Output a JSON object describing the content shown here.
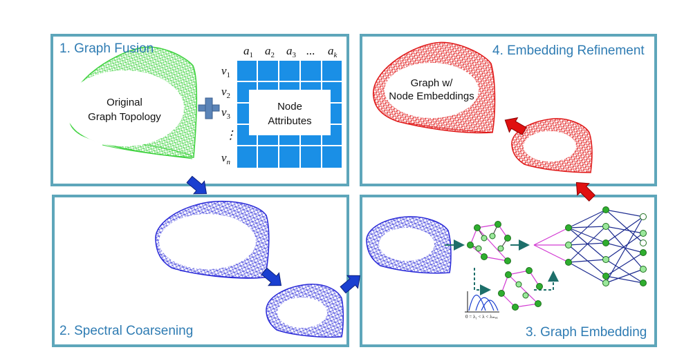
{
  "panels": {
    "fusion": {
      "title": "1. Graph Fusion"
    },
    "refine": {
      "title": "4. Embedding Refinement"
    },
    "coarsen": {
      "title": "2. Spectral Coarsening"
    },
    "embed": {
      "title": "3. Graph Embedding"
    }
  },
  "fusion": {
    "topology_line1": "Original",
    "topology_line2": "Graph Topology",
    "attr_line1": "Node",
    "attr_line2": "Attributes",
    "col_headers": [
      "a",
      "a",
      "a",
      "...",
      "a"
    ],
    "col_subs": [
      "1",
      "2",
      "3",
      "",
      "k"
    ],
    "row_headers": [
      "v",
      "v",
      "v",
      "⋮",
      "v"
    ],
    "row_subs": [
      "1",
      "2",
      "3",
      "",
      "n"
    ]
  },
  "refine": {
    "line1": "Graph w/",
    "line2": "Node Embeddings"
  },
  "embed": {
    "spectrum_label": "0 = λ₁ < λ < λₘₐₓ"
  },
  "colors": {
    "panel_border": "#5ea6ba",
    "title": "#2f7cb3",
    "green_graph": "#3fd23f",
    "blue_graph": "#2a2ad8",
    "red_graph": "#e01818",
    "matrix": "#1a8fe6",
    "plus": "#5b84b8",
    "flow_arrow": "#1a3fd0",
    "refine_arrow": "#e01010"
  }
}
